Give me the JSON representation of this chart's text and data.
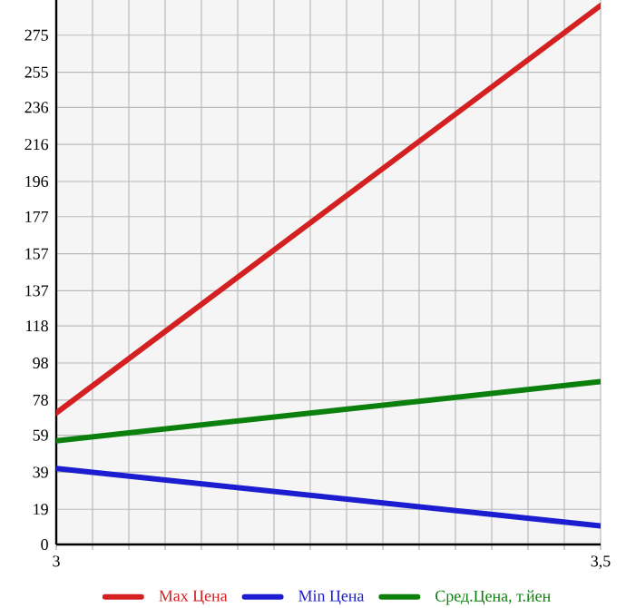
{
  "chart_data": {
    "type": "line",
    "x": [
      3,
      3.5
    ],
    "series": [
      {
        "name": "Max Цена",
        "color": "#d42020",
        "values": [
          71,
          291
        ]
      },
      {
        "name": "Min Цена",
        "color": "#1c1cd0",
        "values": [
          41,
          10
        ]
      },
      {
        "name": "Сред.Цена, т.йен",
        "color": "#0c800c",
        "values": [
          56,
          88
        ]
      }
    ],
    "xlim": [
      3,
      3.5
    ],
    "xticks": [
      {
        "value": 3,
        "label": "3"
      },
      {
        "value": 3.0333,
        "label": null
      },
      {
        "value": 3.0667,
        "label": null
      },
      {
        "value": 3.1,
        "label": null
      },
      {
        "value": 3.1333,
        "label": null
      },
      {
        "value": 3.1667,
        "label": null
      },
      {
        "value": 3.2,
        "label": null
      },
      {
        "value": 3.2333,
        "label": null
      },
      {
        "value": 3.2667,
        "label": null
      },
      {
        "value": 3.3,
        "label": null
      },
      {
        "value": 3.3333,
        "label": null
      },
      {
        "value": 3.3667,
        "label": null
      },
      {
        "value": 3.4,
        "label": null
      },
      {
        "value": 3.4333,
        "label": null
      },
      {
        "value": 3.4667,
        "label": null
      },
      {
        "value": 3.5,
        "label": "3,5"
      }
    ],
    "ylim": [
      0,
      294
    ],
    "yticks": [
      0,
      19,
      39,
      59,
      78,
      98,
      118,
      137,
      157,
      177,
      196,
      216,
      236,
      255,
      275
    ],
    "grid": true,
    "legend": "bottom",
    "marker": "none",
    "line_style": "solid"
  }
}
